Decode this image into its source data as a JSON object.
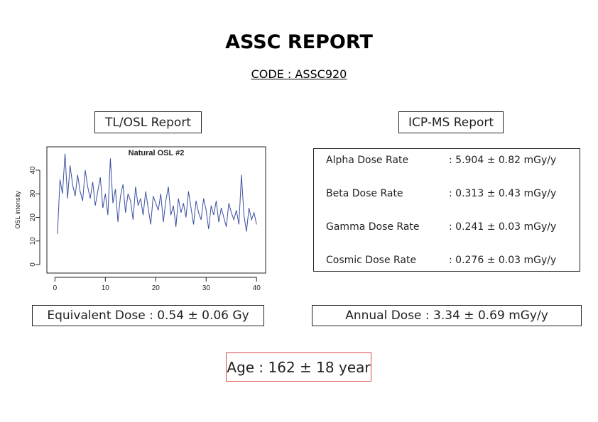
{
  "header": {
    "title": "ASSC REPORT",
    "code": "CODE : ASSC920"
  },
  "tl_osl": {
    "label": "TL/OSL Report",
    "equivalent_dose": "Equivalent Dose : 0.54 ± 0.06 Gy"
  },
  "chart_data": {
    "type": "line",
    "title": "Natural OSL #2",
    "ylabel": "OSL intensity",
    "color": "#3a4fa0",
    "xlim": [
      -1.6,
      41.8
    ],
    "ylim": [
      -3.6,
      49.9
    ],
    "xticks": [
      0,
      10,
      20,
      30,
      40
    ],
    "yticks": [
      0,
      10,
      20,
      30,
      40
    ],
    "x": [
      0.5,
      1,
      1.5,
      2,
      2.5,
      3,
      3.5,
      4,
      4.5,
      5,
      5.5,
      6,
      6.5,
      7,
      7.5,
      8,
      8.5,
      9,
      9.5,
      10,
      10.5,
      11,
      11.5,
      12,
      12.5,
      13,
      13.5,
      14,
      14.5,
      15,
      15.5,
      16,
      16.5,
      17,
      17.5,
      18,
      18.5,
      19,
      19.5,
      20,
      20.5,
      21,
      21.5,
      22,
      22.5,
      23,
      23.5,
      24,
      24.5,
      25,
      25.5,
      26,
      26.5,
      27,
      27.5,
      28,
      28.5,
      29,
      29.5,
      30,
      30.5,
      31,
      31.5,
      32,
      32.5,
      33,
      33.5,
      34,
      34.5,
      35,
      35.5,
      36,
      36.5,
      37,
      37.5,
      38,
      38.5,
      39,
      39.5,
      40
    ],
    "values": [
      13,
      36,
      30,
      47,
      28,
      42,
      34,
      29,
      38,
      31,
      27,
      40,
      33,
      28,
      35,
      25,
      31,
      37,
      24,
      30,
      21,
      45,
      26,
      32,
      18,
      29,
      34,
      22,
      30,
      27,
      19,
      33,
      25,
      28,
      21,
      31,
      24,
      17,
      29,
      26,
      23,
      30,
      18,
      27,
      33,
      21,
      25,
      16,
      28,
      22,
      26,
      20,
      31,
      24,
      17,
      27,
      22,
      19,
      28,
      23,
      15,
      25,
      21,
      27,
      18,
      24,
      20,
      16,
      26,
      22,
      19,
      23,
      17,
      38,
      21,
      14,
      24,
      19,
      22,
      17
    ]
  },
  "icp_ms": {
    "label": "ICP-MS Report",
    "rows": [
      [
        "Alpha Dose Rate",
        ": 5.904 ± 0.82 mGy/y"
      ],
      [
        "Beta Dose Rate",
        ": 0.313 ± 0.43 mGy/y"
      ],
      [
        "Gamma Dose Rate",
        ": 0.241 ± 0.03 mGy/y"
      ],
      [
        "Cosmic Dose Rate",
        ": 0.276 ± 0.03 mGy/y"
      ]
    ],
    "annual_dose": "Annual Dose : 3.34 ± 0.69 mGy/y"
  },
  "age": "Age : 162 ± 18 year"
}
